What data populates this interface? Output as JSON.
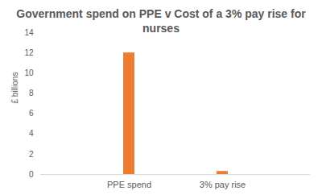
{
  "chart_data": {
    "type": "bar",
    "title": "Government spend on PPE v Cost of a 3% pay rise for nurses",
    "y_label": "£ billions",
    "categories": [
      "PPE spend",
      "3% pay rise"
    ],
    "values": [
      12,
      0.3
    ],
    "color": "#ed7d31",
    "ylim": [
      0,
      14
    ],
    "yticks": [
      0,
      2,
      4,
      6,
      8,
      10,
      12,
      14
    ],
    "grid": false
  }
}
